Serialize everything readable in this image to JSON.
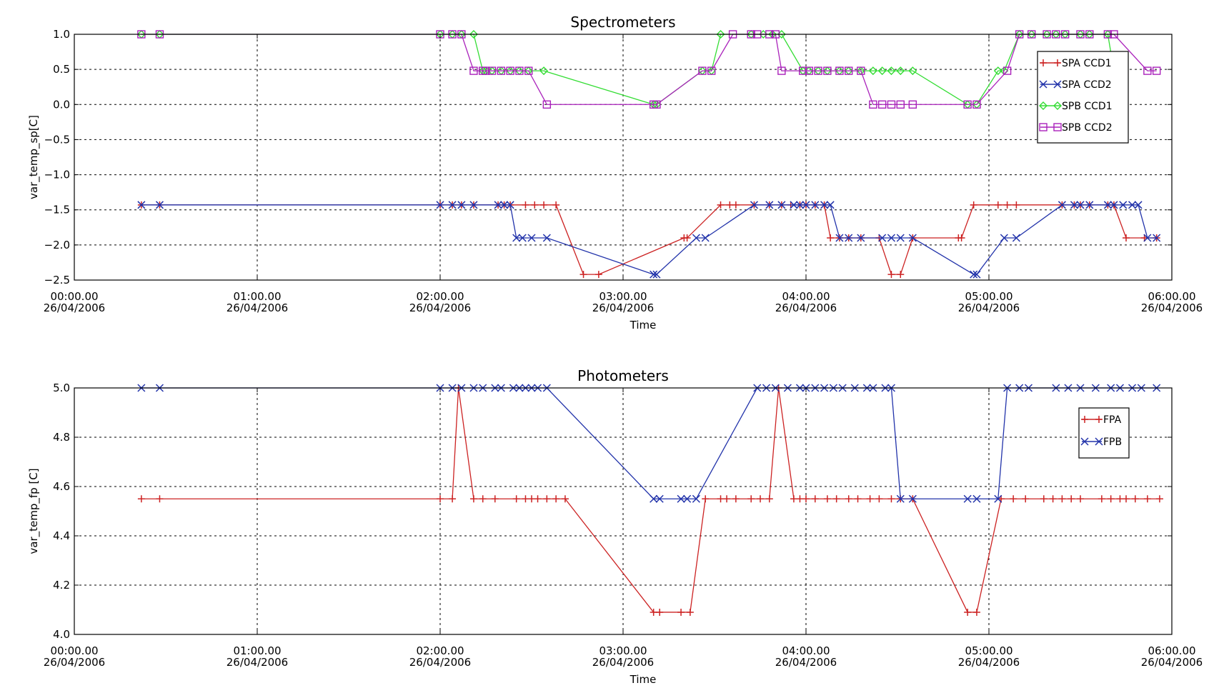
{
  "chart_data": [
    {
      "type": "line",
      "title": "Spectrometers",
      "xlabel": "Time",
      "ylabel": "var_temp_sp[C]",
      "xlim": [
        "00:00.00",
        "06:00.00"
      ],
      "ylim": [
        -2.5,
        1.0
      ],
      "x_tick_labels": [
        {
          "time": "00:00.00",
          "date": "26/04/2006"
        },
        {
          "time": "01:00.00",
          "date": "26/04/2006"
        },
        {
          "time": "02:00.00",
          "date": "26/04/2006"
        },
        {
          "time": "03:00.00",
          "date": "26/04/2006"
        },
        {
          "time": "04:00.00",
          "date": "26/04/2006"
        },
        {
          "time": "05:00.00",
          "date": "26/04/2006"
        },
        {
          "time": "06:00.00",
          "date": "26/04/2006"
        }
      ],
      "y_ticks": [
        -2.5,
        -2.0,
        -1.5,
        -1.0,
        -0.5,
        0.0,
        0.5,
        1.0
      ],
      "y_tick_labels": [
        "−2.5",
        "−2.0",
        "−1.5",
        "−1.0",
        "−0.5",
        "0.0",
        "0.5",
        "1.0"
      ],
      "grid": true,
      "legend_position": "top-right",
      "series": [
        {
          "name": "SPA CCD1",
          "color": "#cc2222",
          "marker": "plus",
          "x": [
            "00:22",
            "00:28",
            "02:00",
            "02:04",
            "02:07",
            "02:11",
            "02:19",
            "02:21",
            "02:23",
            "02:28",
            "02:31",
            "02:34",
            "02:38",
            "02:47",
            "02:52",
            "03:20",
            "03:21",
            "03:32",
            "03:35",
            "03:37",
            "03:43",
            "03:48",
            "03:52",
            "03:55",
            "03:58",
            "04:00",
            "04:03",
            "04:06",
            "04:08",
            "04:11",
            "04:14",
            "04:18",
            "04:24",
            "04:28",
            "04:31",
            "04:35",
            "04:50",
            "04:51",
            "04:55",
            "05:03",
            "05:06",
            "05:09",
            "05:24",
            "05:28",
            "05:30",
            "05:33",
            "05:39",
            "05:41",
            "05:45",
            "05:51",
            "05:55"
          ],
          "y": [
            -1.43,
            -1.43,
            -1.43,
            -1.43,
            -1.43,
            -1.43,
            -1.43,
            -1.43,
            -1.43,
            -1.43,
            -1.43,
            -1.43,
            -1.43,
            -2.42,
            -2.42,
            -1.9,
            -1.9,
            -1.43,
            -1.43,
            -1.43,
            -1.43,
            -1.43,
            -1.43,
            -1.43,
            -1.43,
            -1.43,
            -1.43,
            -1.43,
            -1.9,
            -1.9,
            -1.9,
            -1.9,
            -1.9,
            -2.42,
            -2.42,
            -1.9,
            -1.9,
            -1.9,
            -1.43,
            -1.43,
            -1.43,
            -1.43,
            -1.43,
            -1.43,
            -1.43,
            -1.43,
            -1.43,
            -1.43,
            -1.9,
            -1.9,
            -1.9
          ]
        },
        {
          "name": "SPA CCD2",
          "color": "#2233aa",
          "marker": "x",
          "x": [
            "00:22",
            "00:28",
            "02:00",
            "02:04",
            "02:07",
            "02:11",
            "02:19",
            "02:21",
            "02:23",
            "02:25",
            "02:27",
            "02:30",
            "02:35",
            "03:10",
            "03:11",
            "03:24",
            "03:27",
            "03:43",
            "03:48",
            "03:52",
            "03:56",
            "03:58",
            "04:00",
            "04:03",
            "04:06",
            "04:08",
            "04:11",
            "04:14",
            "04:18",
            "04:25",
            "04:28",
            "04:31",
            "04:35",
            "04:55",
            "04:56",
            "05:05",
            "05:09",
            "05:24",
            "05:28",
            "05:30",
            "05:33",
            "05:39",
            "05:41",
            "05:44",
            "05:47",
            "05:49",
            "05:52",
            "05:55"
          ],
          "y": [
            -1.43,
            -1.43,
            -1.43,
            -1.43,
            -1.43,
            -1.43,
            -1.43,
            -1.43,
            -1.43,
            -1.9,
            -1.9,
            -1.9,
            -1.9,
            -2.42,
            -2.42,
            -1.9,
            -1.9,
            -1.43,
            -1.43,
            -1.43,
            -1.43,
            -1.43,
            -1.43,
            -1.43,
            -1.43,
            -1.43,
            -1.9,
            -1.9,
            -1.9,
            -1.9,
            -1.9,
            -1.9,
            -1.9,
            -2.42,
            -2.42,
            -1.9,
            -1.9,
            -1.43,
            -1.43,
            -1.43,
            -1.43,
            -1.43,
            -1.43,
            -1.43,
            -1.43,
            -1.43,
            -1.9,
            -1.9
          ]
        },
        {
          "name": "SPB CCD1",
          "color": "#33dd33",
          "marker": "diamond",
          "x": [
            "00:22",
            "00:28",
            "02:00",
            "02:04",
            "02:07",
            "02:11",
            "02:14",
            "02:15",
            "02:17",
            "02:20",
            "02:23",
            "02:26",
            "02:29",
            "02:34",
            "03:10",
            "03:11",
            "03:26",
            "03:29",
            "03:32",
            "03:42",
            "03:46",
            "03:49",
            "03:52",
            "03:59",
            "04:01",
            "04:04",
            "04:07",
            "04:11",
            "04:14",
            "04:18",
            "04:22",
            "04:25",
            "04:28",
            "04:31",
            "04:35",
            "04:53",
            "04:56",
            "05:03",
            "05:05",
            "05:10",
            "05:14",
            "05:19",
            "05:22",
            "05:25",
            "05:30",
            "05:33",
            "05:39",
            "05:41"
          ],
          "y": [
            1.0,
            1.0,
            1.0,
            1.0,
            1.0,
            1.0,
            0.48,
            0.48,
            0.48,
            0.48,
            0.48,
            0.48,
            0.48,
            0.48,
            0.0,
            0.0,
            0.48,
            0.48,
            1.0,
            1.0,
            1.0,
            1.0,
            1.0,
            0.48,
            0.48,
            0.48,
            0.48,
            0.48,
            0.48,
            0.48,
            0.48,
            0.48,
            0.48,
            0.48,
            0.48,
            0.0,
            0.0,
            0.48,
            0.48,
            1.0,
            1.0,
            1.0,
            1.0,
            1.0,
            1.0,
            1.0,
            1.0,
            0.48
          ]
        },
        {
          "name": "SPB CCD2",
          "color": "#aa22bb",
          "marker": "square",
          "x": [
            "00:22",
            "00:28",
            "02:00",
            "02:04",
            "02:07",
            "02:11",
            "02:14",
            "02:15",
            "02:17",
            "02:20",
            "02:23",
            "02:26",
            "02:29",
            "02:35",
            "03:10",
            "03:11",
            "03:26",
            "03:29",
            "03:36",
            "03:42",
            "03:44",
            "03:48",
            "03:50",
            "03:52",
            "03:59",
            "04:01",
            "04:04",
            "04:07",
            "04:11",
            "04:14",
            "04:18",
            "04:22",
            "04:25",
            "04:28",
            "04:31",
            "04:35",
            "04:53",
            "04:56",
            "05:06",
            "05:10",
            "05:14",
            "05:19",
            "05:22",
            "05:25",
            "05:30",
            "05:33",
            "05:39",
            "05:41",
            "05:52",
            "05:55"
          ],
          "y": [
            1.0,
            1.0,
            1.0,
            1.0,
            1.0,
            0.48,
            0.48,
            0.48,
            0.48,
            0.48,
            0.48,
            0.48,
            0.48,
            0.0,
            0.0,
            0.0,
            0.48,
            0.48,
            1.0,
            1.0,
            1.0,
            1.0,
            1.0,
            0.48,
            0.48,
            0.48,
            0.48,
            0.48,
            0.48,
            0.48,
            0.48,
            0.0,
            0.0,
            0.0,
            0.0,
            0.0,
            0.0,
            0.0,
            0.48,
            1.0,
            1.0,
            1.0,
            1.0,
            1.0,
            1.0,
            1.0,
            1.0,
            1.0,
            0.48,
            0.48
          ]
        }
      ]
    },
    {
      "type": "line",
      "title": "Photometers",
      "xlabel": "Time",
      "ylabel": "var_temp_fp [C]",
      "xlim": [
        "00:00.00",
        "06:00.00"
      ],
      "ylim": [
        4.0,
        5.0
      ],
      "x_tick_labels": [
        {
          "time": "00:00.00",
          "date": "26/04/2006"
        },
        {
          "time": "01:00.00",
          "date": "26/04/2006"
        },
        {
          "time": "02:00.00",
          "date": "26/04/2006"
        },
        {
          "time": "03:00.00",
          "date": "26/04/2006"
        },
        {
          "time": "04:00.00",
          "date": "26/04/2006"
        },
        {
          "time": "05:00.00",
          "date": "26/04/2006"
        },
        {
          "time": "06:00.00",
          "date": "26/04/2006"
        }
      ],
      "y_ticks": [
        4.0,
        4.2,
        4.4,
        4.6,
        4.8,
        5.0
      ],
      "y_tick_labels": [
        "4.0",
        "4.2",
        "4.4",
        "4.6",
        "4.8",
        "5.0"
      ],
      "grid": true,
      "legend_position": "top-right",
      "series": [
        {
          "name": "FPA",
          "color": "#cc2222",
          "marker": "plus",
          "x": [
            "00:22",
            "00:28",
            "02:00",
            "02:04",
            "02:06",
            "02:11",
            "02:14",
            "02:18",
            "02:25",
            "02:28",
            "02:30",
            "02:32",
            "02:35",
            "02:38",
            "02:41",
            "03:10",
            "03:12",
            "03:19",
            "03:22",
            "03:27",
            "03:32",
            "03:34",
            "03:37",
            "03:42",
            "03:45",
            "03:48",
            "03:51",
            "03:56",
            "03:58",
            "04:00",
            "04:03",
            "04:07",
            "04:10",
            "04:14",
            "04:17",
            "04:21",
            "04:24",
            "04:28",
            "04:31",
            "04:35",
            "04:53",
            "04:56",
            "05:04",
            "05:08",
            "05:12",
            "05:18",
            "05:21",
            "05:24",
            "05:27",
            "05:30",
            "05:37",
            "05:40",
            "05:43",
            "05:45",
            "05:48",
            "05:52",
            "05:56"
          ],
          "y": [
            4.55,
            4.55,
            4.55,
            4.55,
            5.0,
            4.55,
            4.55,
            4.55,
            4.55,
            4.55,
            4.55,
            4.55,
            4.55,
            4.55,
            4.55,
            4.09,
            4.09,
            4.09,
            4.09,
            4.55,
            4.55,
            4.55,
            4.55,
            4.55,
            4.55,
            4.55,
            5.0,
            4.55,
            4.55,
            4.55,
            4.55,
            4.55,
            4.55,
            4.55,
            4.55,
            4.55,
            4.55,
            4.55,
            4.55,
            4.55,
            4.09,
            4.09,
            4.55,
            4.55,
            4.55,
            4.55,
            4.55,
            4.55,
            4.55,
            4.55,
            4.55,
            4.55,
            4.55,
            4.55,
            4.55,
            4.55,
            4.55
          ]
        },
        {
          "name": "FPB",
          "color": "#2233aa",
          "marker": "x",
          "x": [
            "00:22",
            "00:28",
            "02:00",
            "02:04",
            "02:07",
            "02:11",
            "02:14",
            "02:18",
            "02:20",
            "02:24",
            "02:26",
            "02:28",
            "02:30",
            "02:32",
            "02:35",
            "03:10",
            "03:12",
            "03:19",
            "03:21",
            "03:24",
            "03:44",
            "03:47",
            "03:50",
            "03:54",
            "03:58",
            "04:00",
            "04:03",
            "04:06",
            "04:09",
            "04:12",
            "04:16",
            "04:20",
            "04:22",
            "04:26",
            "04:28",
            "04:31",
            "04:35",
            "04:53",
            "04:56",
            "05:03",
            "05:06",
            "05:10",
            "05:13",
            "05:22",
            "05:26",
            "05:30",
            "05:35",
            "05:40",
            "05:43",
            "05:47",
            "05:50",
            "05:55"
          ],
          "y": [
            5.0,
            5.0,
            5.0,
            5.0,
            5.0,
            5.0,
            5.0,
            5.0,
            5.0,
            5.0,
            5.0,
            5.0,
            5.0,
            5.0,
            5.0,
            4.55,
            4.55,
            4.55,
            4.55,
            4.55,
            5.0,
            5.0,
            5.0,
            5.0,
            5.0,
            5.0,
            5.0,
            5.0,
            5.0,
            5.0,
            5.0,
            5.0,
            5.0,
            5.0,
            5.0,
            4.55,
            4.55,
            4.55,
            4.55,
            4.55,
            5.0,
            5.0,
            5.0,
            5.0,
            5.0,
            5.0,
            5.0,
            5.0,
            5.0,
            5.0,
            5.0,
            5.0
          ]
        }
      ]
    }
  ]
}
